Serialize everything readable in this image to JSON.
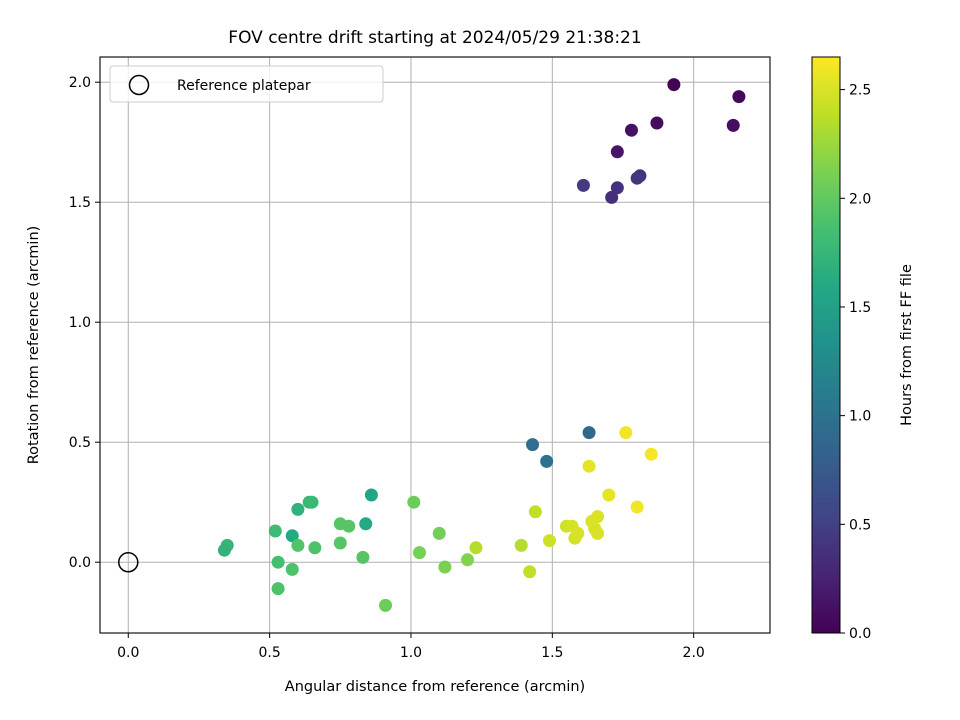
{
  "chart_data": {
    "type": "scatter",
    "title": "FOV centre drift starting at 2024/05/29 21:38:21",
    "xlabel": "Angular distance from reference (arcmin)",
    "ylabel": "Rotation from reference (arcmin)",
    "xlim": [
      -0.1,
      2.27
    ],
    "ylim": [
      -0.295,
      2.105
    ],
    "xticks": [
      0.0,
      0.5,
      1.0,
      1.5,
      2.0
    ],
    "xtick_labels": [
      "0.0",
      "0.5",
      "1.0",
      "1.5",
      "2.0"
    ],
    "yticks": [
      0.0,
      0.5,
      1.0,
      1.5,
      2.0
    ],
    "ytick_labels": [
      "0.0",
      "0.5",
      "1.0",
      "1.5",
      "2.0"
    ],
    "grid": true,
    "colormap": "viridis",
    "legend": {
      "label": "Reference platepar",
      "location": "top-left"
    },
    "reference_point": {
      "x": 0.0,
      "y": 0.0
    },
    "colorbar": {
      "label": "Hours from first FF file",
      "range": [
        0.0,
        2.65
      ],
      "ticks": [
        0.0,
        0.5,
        1.0,
        1.5,
        2.0,
        2.5
      ],
      "tick_labels": [
        "0.0",
        "0.5",
        "1.0",
        "1.5",
        "2.0",
        "2.5"
      ]
    },
    "points": [
      {
        "x": 1.93,
        "y": 1.99,
        "c": 0.02
      },
      {
        "x": 2.16,
        "y": 1.94,
        "c": 0.05
      },
      {
        "x": 1.87,
        "y": 1.83,
        "c": 0.08
      },
      {
        "x": 2.14,
        "y": 1.82,
        "c": 0.1
      },
      {
        "x": 1.78,
        "y": 1.8,
        "c": 0.12
      },
      {
        "x": 1.73,
        "y": 1.71,
        "c": 0.15
      },
      {
        "x": 1.81,
        "y": 1.61,
        "c": 0.4
      },
      {
        "x": 1.8,
        "y": 1.6,
        "c": 0.42
      },
      {
        "x": 1.61,
        "y": 1.57,
        "c": 0.45
      },
      {
        "x": 1.73,
        "y": 1.56,
        "c": 0.38
      },
      {
        "x": 1.71,
        "y": 1.52,
        "c": 0.35
      },
      {
        "x": 1.63,
        "y": 0.54,
        "c": 0.9
      },
      {
        "x": 1.43,
        "y": 0.49,
        "c": 0.95
      },
      {
        "x": 1.48,
        "y": 0.42,
        "c": 1.0
      },
      {
        "x": 0.86,
        "y": 0.28,
        "c": 1.55
      },
      {
        "x": 0.84,
        "y": 0.16,
        "c": 1.6
      },
      {
        "x": 0.58,
        "y": 0.11,
        "c": 1.6
      },
      {
        "x": 0.6,
        "y": 0.22,
        "c": 1.7
      },
      {
        "x": 0.64,
        "y": 0.25,
        "c": 1.75
      },
      {
        "x": 0.65,
        "y": 0.25,
        "c": 1.77
      },
      {
        "x": 0.52,
        "y": 0.13,
        "c": 1.8
      },
      {
        "x": 0.35,
        "y": 0.07,
        "c": 1.75
      },
      {
        "x": 0.34,
        "y": 0.05,
        "c": 1.72
      },
      {
        "x": 0.53,
        "y": 0.0,
        "c": 1.85
      },
      {
        "x": 0.58,
        "y": -0.03,
        "c": 1.9
      },
      {
        "x": 0.53,
        "y": -0.11,
        "c": 1.9
      },
      {
        "x": 0.6,
        "y": 0.07,
        "c": 1.92
      },
      {
        "x": 0.66,
        "y": 0.06,
        "c": 1.9
      },
      {
        "x": 0.75,
        "y": 0.16,
        "c": 1.95
      },
      {
        "x": 0.78,
        "y": 0.15,
        "c": 1.95
      },
      {
        "x": 0.75,
        "y": 0.08,
        "c": 1.95
      },
      {
        "x": 0.83,
        "y": 0.02,
        "c": 1.95
      },
      {
        "x": 0.91,
        "y": -0.18,
        "c": 2.05
      },
      {
        "x": 1.01,
        "y": 0.25,
        "c": 2.05
      },
      {
        "x": 1.1,
        "y": 0.12,
        "c": 2.08
      },
      {
        "x": 1.03,
        "y": 0.04,
        "c": 2.1
      },
      {
        "x": 1.12,
        "y": -0.02,
        "c": 2.12
      },
      {
        "x": 1.2,
        "y": 0.01,
        "c": 2.15
      },
      {
        "x": 1.23,
        "y": 0.06,
        "c": 2.35
      },
      {
        "x": 1.39,
        "y": 0.07,
        "c": 2.35
      },
      {
        "x": 1.42,
        "y": -0.04,
        "c": 2.4
      },
      {
        "x": 1.44,
        "y": 0.21,
        "c": 2.4
      },
      {
        "x": 1.49,
        "y": 0.09,
        "c": 2.45
      },
      {
        "x": 1.55,
        "y": 0.15,
        "c": 2.45
      },
      {
        "x": 1.57,
        "y": 0.15,
        "c": 2.48
      },
      {
        "x": 1.58,
        "y": 0.1,
        "c": 2.48
      },
      {
        "x": 1.59,
        "y": 0.12,
        "c": 2.5
      },
      {
        "x": 1.63,
        "y": 0.4,
        "c": 2.55
      },
      {
        "x": 1.64,
        "y": 0.17,
        "c": 2.5
      },
      {
        "x": 1.65,
        "y": 0.14,
        "c": 2.5
      },
      {
        "x": 1.66,
        "y": 0.19,
        "c": 2.5
      },
      {
        "x": 1.66,
        "y": 0.12,
        "c": 2.5
      },
      {
        "x": 1.7,
        "y": 0.28,
        "c": 2.55
      },
      {
        "x": 1.76,
        "y": 0.54,
        "c": 2.6
      },
      {
        "x": 1.8,
        "y": 0.23,
        "c": 2.6
      },
      {
        "x": 1.85,
        "y": 0.45,
        "c": 2.62
      }
    ]
  }
}
